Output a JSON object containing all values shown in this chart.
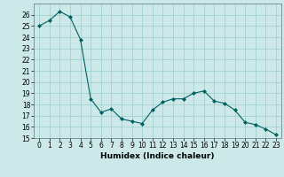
{
  "xlabel": "Humidex (Indice chaleur)",
  "ylabel": "",
  "x": [
    0,
    1,
    2,
    3,
    4,
    5,
    6,
    7,
    8,
    9,
    10,
    11,
    12,
    13,
    14,
    15,
    16,
    17,
    18,
    19,
    20,
    21,
    22,
    23
  ],
  "y": [
    25.0,
    25.5,
    26.3,
    25.8,
    23.8,
    18.5,
    17.3,
    17.6,
    16.7,
    16.5,
    16.3,
    17.5,
    18.2,
    18.5,
    18.5,
    19.0,
    19.2,
    18.3,
    18.1,
    17.5,
    16.4,
    16.2,
    15.8,
    15.3
  ],
  "line_color": "#006060",
  "marker": "D",
  "marker_size": 2,
  "bg_color": "#cce8e8",
  "grid_color": "#99cccc",
  "ylim": [
    15,
    27
  ],
  "yticks": [
    15,
    16,
    17,
    18,
    19,
    20,
    21,
    22,
    23,
    24,
    25,
    26
  ],
  "xlim": [
    -0.5,
    23.5
  ],
  "xticks": [
    0,
    1,
    2,
    3,
    4,
    5,
    6,
    7,
    8,
    9,
    10,
    11,
    12,
    13,
    14,
    15,
    16,
    17,
    18,
    19,
    20,
    21,
    22,
    23
  ],
  "label_fontsize": 6.5,
  "tick_fontsize": 5.5
}
